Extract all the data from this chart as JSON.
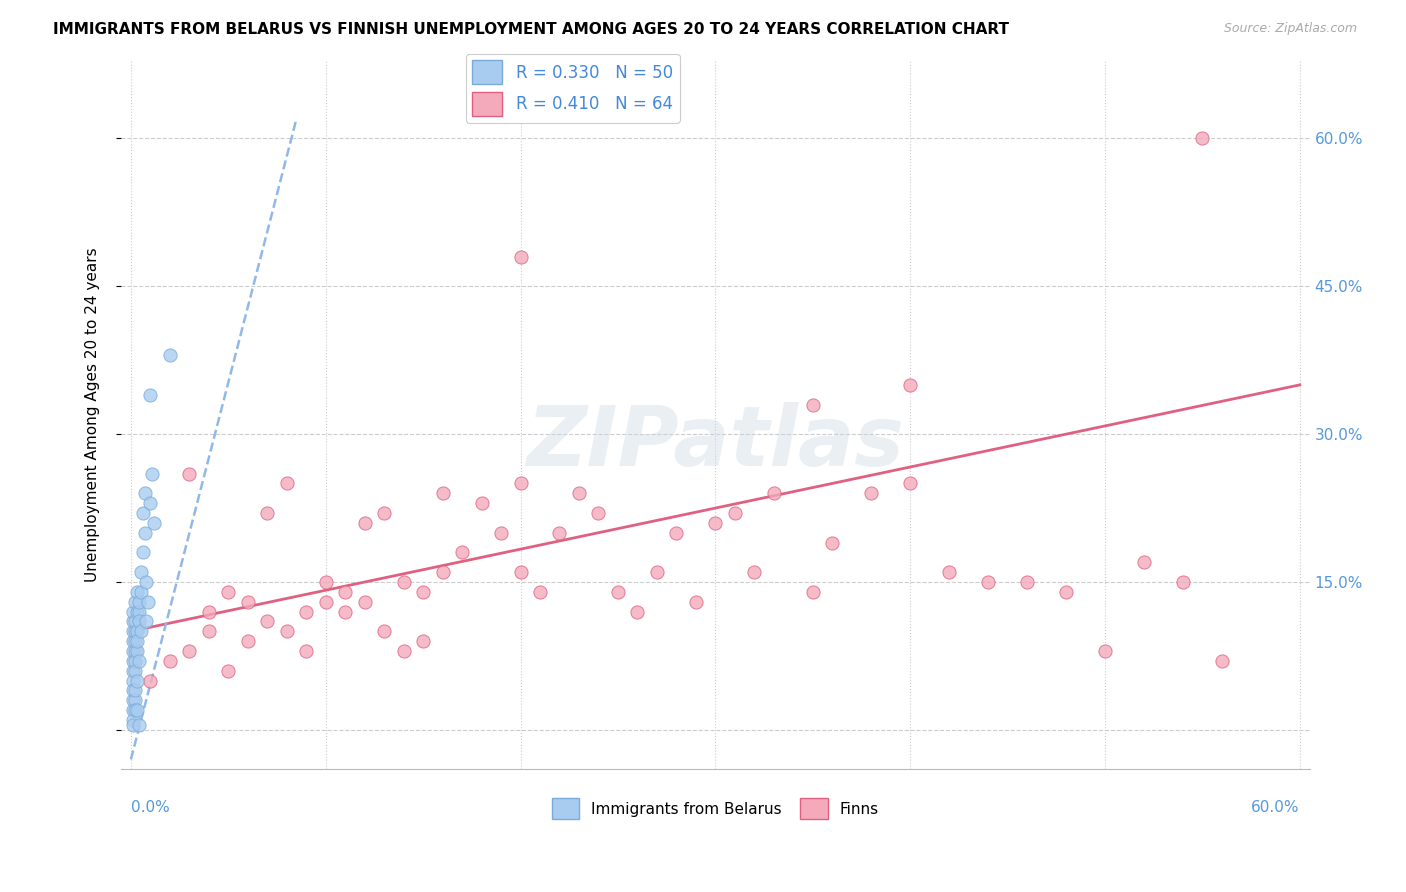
{
  "title": "IMMIGRANTS FROM BELARUS VS FINNISH UNEMPLOYMENT AMONG AGES 20 TO 24 YEARS CORRELATION CHART",
  "source": "Source: ZipAtlas.com",
  "ylabel": "Unemployment Among Ages 20 to 24 years",
  "xlim": [
    0.0,
    0.6
  ],
  "ylim": [
    -0.04,
    0.68
  ],
  "yticks": [
    0.0,
    0.15,
    0.3,
    0.45,
    0.6
  ],
  "ytick_labels": [
    "",
    "15.0%",
    "30.0%",
    "45.0%",
    "60.0%"
  ],
  "legend_blue_label": "R = 0.330   N = 50",
  "legend_pink_label": "R = 0.410   N = 64",
  "legend_bottom_blue": "Immigrants from Belarus",
  "legend_bottom_pink": "Finns",
  "blue_color": "#a8ccf0",
  "pink_color": "#f4aabb",
  "pink_line_color": "#e06080",
  "blue_line_color": "#90b8e8",
  "axis_label_color": "#5599dd",
  "grid_color": "#cccccc",
  "blue_x": [
    0.001,
    0.001,
    0.001,
    0.001,
    0.001,
    0.001,
    0.001,
    0.001,
    0.002,
    0.002,
    0.002,
    0.002,
    0.002,
    0.002,
    0.002,
    0.003,
    0.003,
    0.003,
    0.003,
    0.003,
    0.004,
    0.004,
    0.004,
    0.004,
    0.005,
    0.005,
    0.005,
    0.006,
    0.006,
    0.007,
    0.007,
    0.008,
    0.008,
    0.009,
    0.01,
    0.011,
    0.012,
    0.001,
    0.001,
    0.001,
    0.001,
    0.001,
    0.002,
    0.002,
    0.002,
    0.003,
    0.003,
    0.004,
    0.02,
    0.01
  ],
  "blue_y": [
    0.06,
    0.07,
    0.08,
    0.09,
    0.1,
    0.11,
    0.12,
    0.05,
    0.08,
    0.09,
    0.1,
    0.11,
    0.13,
    0.07,
    0.06,
    0.1,
    0.12,
    0.14,
    0.08,
    0.09,
    0.12,
    0.13,
    0.11,
    0.07,
    0.14,
    0.16,
    0.1,
    0.18,
    0.22,
    0.2,
    0.24,
    0.15,
    0.11,
    0.13,
    0.23,
    0.26,
    0.21,
    0.03,
    0.04,
    0.02,
    0.01,
    0.005,
    0.03,
    0.04,
    0.02,
    0.02,
    0.05,
    0.005,
    0.38,
    0.34
  ],
  "pink_x": [
    0.01,
    0.02,
    0.03,
    0.03,
    0.04,
    0.04,
    0.05,
    0.05,
    0.06,
    0.06,
    0.07,
    0.07,
    0.08,
    0.08,
    0.09,
    0.09,
    0.1,
    0.1,
    0.11,
    0.11,
    0.12,
    0.12,
    0.13,
    0.13,
    0.14,
    0.14,
    0.15,
    0.15,
    0.16,
    0.16,
    0.17,
    0.18,
    0.19,
    0.2,
    0.2,
    0.21,
    0.22,
    0.23,
    0.24,
    0.25,
    0.26,
    0.27,
    0.28,
    0.29,
    0.3,
    0.31,
    0.32,
    0.33,
    0.35,
    0.36,
    0.38,
    0.4,
    0.42,
    0.44,
    0.46,
    0.48,
    0.5,
    0.52,
    0.54,
    0.56,
    0.2,
    0.4,
    0.55,
    0.35
  ],
  "pink_y": [
    0.05,
    0.07,
    0.08,
    0.26,
    0.1,
    0.12,
    0.06,
    0.14,
    0.09,
    0.13,
    0.11,
    0.22,
    0.25,
    0.1,
    0.12,
    0.08,
    0.13,
    0.15,
    0.12,
    0.14,
    0.13,
    0.21,
    0.1,
    0.22,
    0.15,
    0.08,
    0.14,
    0.09,
    0.24,
    0.16,
    0.18,
    0.23,
    0.2,
    0.16,
    0.25,
    0.14,
    0.2,
    0.24,
    0.22,
    0.14,
    0.12,
    0.16,
    0.2,
    0.13,
    0.21,
    0.22,
    0.16,
    0.24,
    0.14,
    0.19,
    0.24,
    0.25,
    0.16,
    0.15,
    0.15,
    0.14,
    0.08,
    0.17,
    0.15,
    0.07,
    0.48,
    0.35,
    0.6,
    0.33
  ],
  "pink_line_x": [
    0.0,
    0.6
  ],
  "pink_line_y": [
    0.1,
    0.35
  ],
  "blue_line_x": [
    0.0,
    0.085
  ],
  "blue_line_y": [
    -0.03,
    0.62
  ]
}
